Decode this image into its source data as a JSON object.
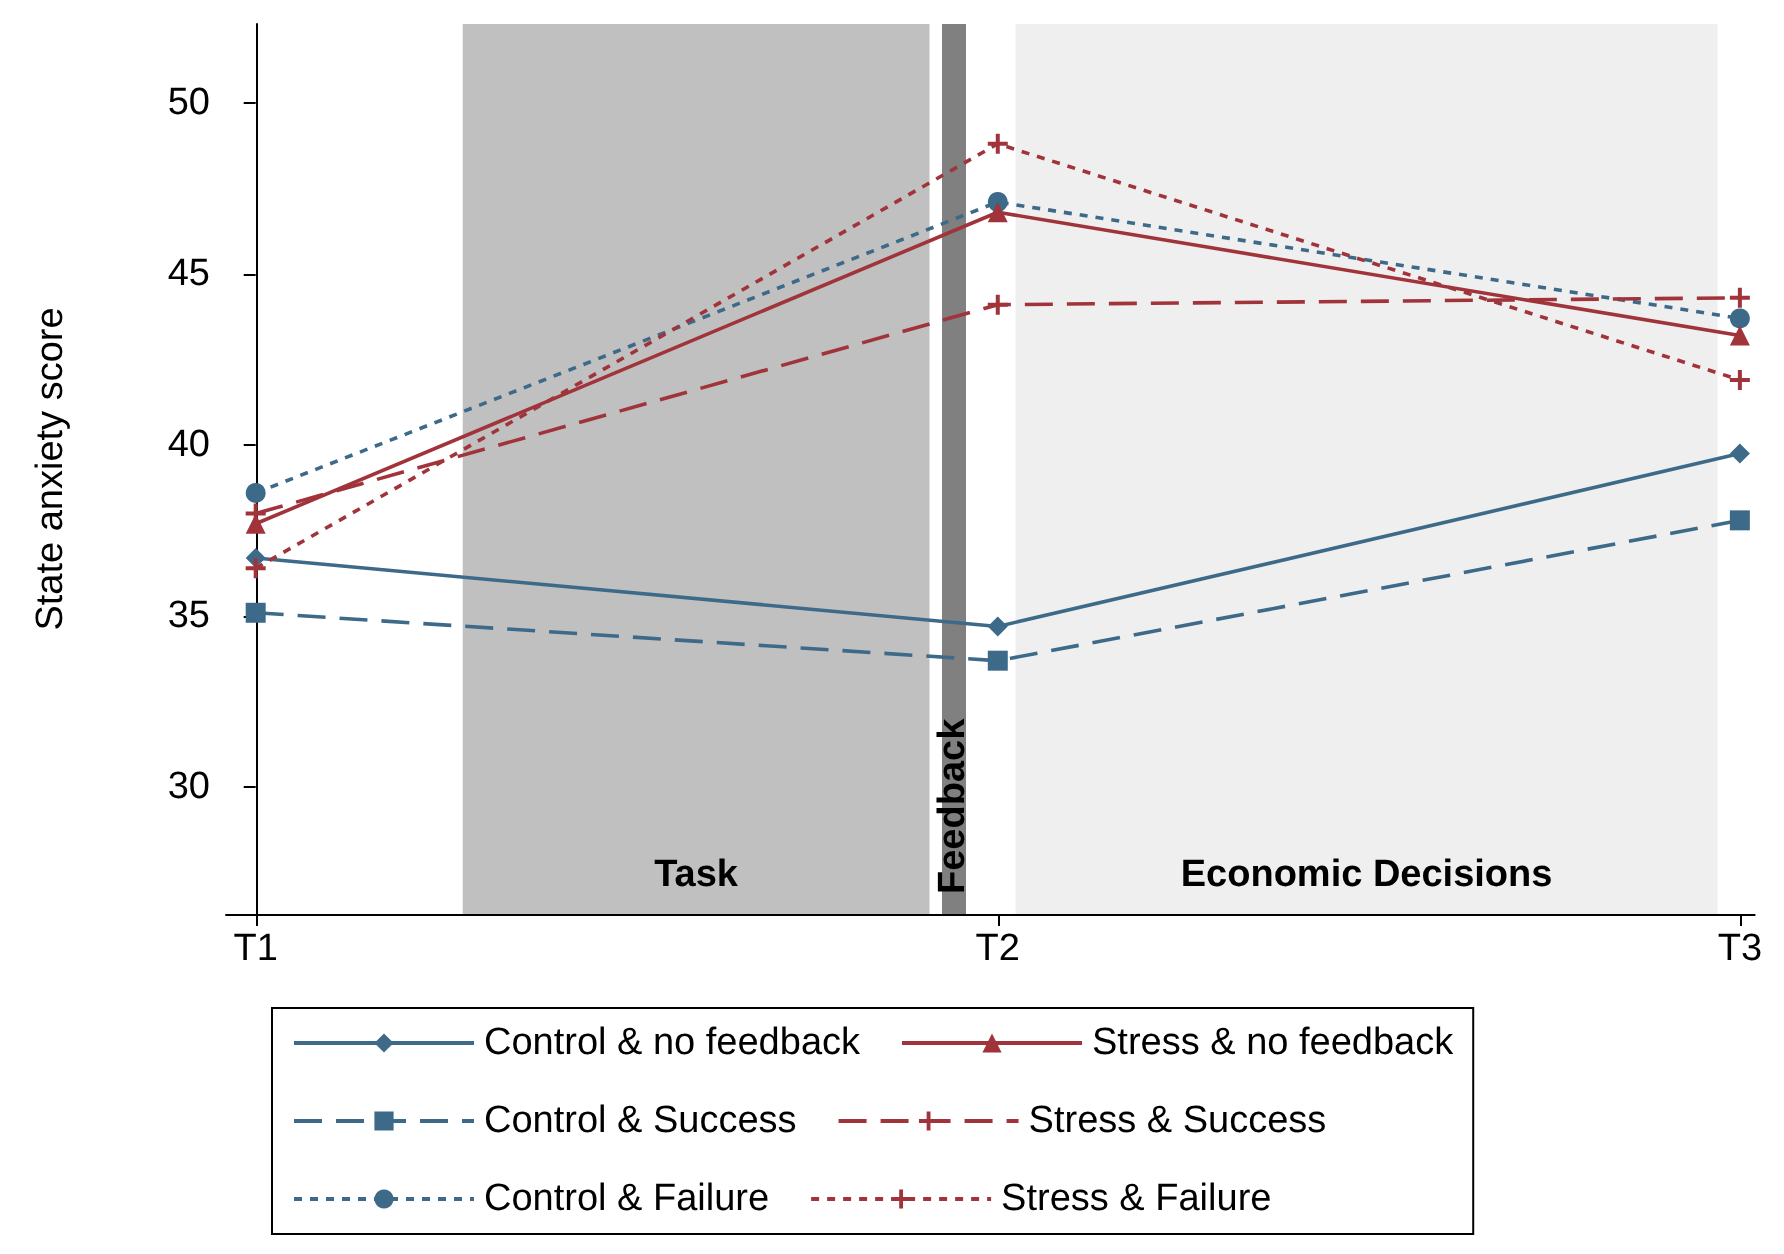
{
  "chart_data": {
    "type": "line",
    "ylabel": "State anxiety score",
    "categories": [
      "T1",
      "T2",
      "T3"
    ],
    "ylim": [
      26.3,
      52.3
    ],
    "yticks": [
      30,
      35,
      40,
      45,
      50
    ],
    "grid": false,
    "legend": "bottom",
    "bands": [
      {
        "axis": "x",
        "from": "T1",
        "to": "T2",
        "label": "Task",
        "color": "#c0c0c0"
      },
      {
        "axis": "x",
        "from": "T2",
        "to": "T3",
        "label": "Economic Decisions",
        "color": "#efefef"
      }
    ],
    "ref_lines": [
      {
        "axis": "x",
        "value": "T2",
        "label": "Feedback",
        "color": "#808080"
      }
    ],
    "series": [
      {
        "name": "Control & no feedback",
        "color": "#3e6a8a",
        "marker": "diamond",
        "line_style": "solid",
        "values": [
          36.7,
          34.7,
          39.75
        ]
      },
      {
        "name": "Control & Success",
        "color": "#3e6a8a",
        "marker": "square",
        "line_style": "dashed",
        "values": [
          35.1,
          33.7,
          37.8
        ]
      },
      {
        "name": "Control & Failure",
        "color": "#3e6a8a",
        "marker": "circle",
        "line_style": "dotted",
        "values": [
          38.6,
          47.1,
          43.7
        ]
      },
      {
        "name": "Stress & no feedback",
        "color": "#a0343a",
        "marker": "triangle",
        "line_style": "solid",
        "values": [
          37.7,
          46.8,
          43.2
        ]
      },
      {
        "name": "Stress & Success",
        "color": "#a0343a",
        "marker": "cross",
        "line_style": "dashed",
        "values": [
          38.0,
          44.1,
          44.3
        ]
      },
      {
        "name": "Stress & Failure",
        "color": "#a0343a",
        "marker": "cross",
        "line_style": "dotted",
        "values": [
          36.4,
          48.8,
          41.9
        ]
      }
    ]
  }
}
